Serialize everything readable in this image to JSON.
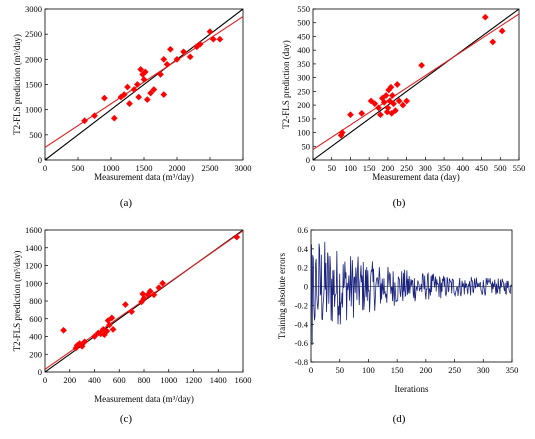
{
  "charts": [
    {
      "type": "scatter",
      "panel_label": "(a)",
      "xlabel": "Measurement data (m³/day)",
      "ylabel": "T2-FLS prediction (m³/day)",
      "xlim": [
        0,
        3000
      ],
      "ylim": [
        0,
        3000
      ],
      "xticks": [
        0,
        500,
        1000,
        1500,
        2000,
        2500,
        3000
      ],
      "yticks": [
        0,
        500,
        1000,
        1500,
        2000,
        2500,
        3000
      ],
      "points": [
        [
          600,
          780
        ],
        [
          750,
          880
        ],
        [
          900,
          1230
        ],
        [
          1050,
          830
        ],
        [
          1150,
          1250
        ],
        [
          1200,
          1300
        ],
        [
          1250,
          1450
        ],
        [
          1280,
          1120
        ],
        [
          1350,
          1400
        ],
        [
          1400,
          1500
        ],
        [
          1420,
          1250
        ],
        [
          1450,
          1800
        ],
        [
          1480,
          1700
        ],
        [
          1500,
          1600
        ],
        [
          1520,
          1750
        ],
        [
          1550,
          1200
        ],
        [
          1600,
          1330
        ],
        [
          1650,
          1400
        ],
        [
          1750,
          1700
        ],
        [
          1800,
          1300
        ],
        [
          1800,
          2000
        ],
        [
          1850,
          1900
        ],
        [
          1900,
          2200
        ],
        [
          2000,
          2000
        ],
        [
          2100,
          2150
        ],
        [
          2200,
          2050
        ],
        [
          2300,
          2250
        ],
        [
          2350,
          2300
        ],
        [
          2500,
          2550
        ],
        [
          2550,
          2400
        ],
        [
          2650,
          2400
        ]
      ],
      "lines": [
        {
          "color": "#000000",
          "x": [
            0,
            3000
          ],
          "y": [
            0,
            3000
          ]
        },
        {
          "color": "#e02020",
          "x": [
            0,
            3000
          ],
          "y": [
            250,
            2850
          ]
        }
      ]
    },
    {
      "type": "scatter",
      "panel_label": "(b)",
      "xlabel": "Measurement data (day)",
      "ylabel": "T2-FLS prediction (day)",
      "xlim": [
        0,
        550
      ],
      "ylim": [
        0,
        550
      ],
      "xticks": [
        0,
        50,
        100,
        150,
        200,
        250,
        300,
        350,
        400,
        450,
        500,
        550
      ],
      "yticks": [
        0,
        50,
        100,
        150,
        200,
        250,
        300,
        350,
        400,
        450,
        500,
        550
      ],
      "points": [
        [
          75,
          90
        ],
        [
          78,
          100
        ],
        [
          100,
          165
        ],
        [
          130,
          170
        ],
        [
          155,
          215
        ],
        [
          165,
          205
        ],
        [
          175,
          190
        ],
        [
          180,
          165
        ],
        [
          185,
          225
        ],
        [
          190,
          210
        ],
        [
          195,
          235
        ],
        [
          198,
          175
        ],
        [
          200,
          190
        ],
        [
          202,
          255
        ],
        [
          205,
          215
        ],
        [
          208,
          265
        ],
        [
          210,
          170
        ],
        [
          212,
          235
        ],
        [
          215,
          205
        ],
        [
          220,
          180
        ],
        [
          225,
          275
        ],
        [
          230,
          215
        ],
        [
          240,
          200
        ],
        [
          250,
          215
        ],
        [
          290,
          345
        ],
        [
          460,
          520
        ],
        [
          480,
          430
        ],
        [
          505,
          470
        ]
      ],
      "lines": [
        {
          "color": "#000000",
          "x": [
            0,
            550
          ],
          "y": [
            0,
            550
          ]
        },
        {
          "color": "#e02020",
          "x": [
            0,
            550
          ],
          "y": [
            38,
            532
          ]
        }
      ]
    },
    {
      "type": "scatter",
      "panel_label": "(c)",
      "xlabel": "Measurement data (m³/day)",
      "ylabel": "T2-FLS prediction (m³/day)",
      "xlim": [
        0,
        1600
      ],
      "ylim": [
        0,
        1600
      ],
      "xticks": [
        0,
        200,
        400,
        600,
        800,
        1000,
        1200,
        1400,
        1600
      ],
      "yticks": [
        0,
        200,
        400,
        600,
        800,
        1000,
        1200,
        1400,
        1600
      ],
      "points": [
        [
          150,
          470
        ],
        [
          250,
          270
        ],
        [
          260,
          300
        ],
        [
          280,
          320
        ],
        [
          300,
          290
        ],
        [
          320,
          340
        ],
        [
          400,
          400
        ],
        [
          430,
          440
        ],
        [
          450,
          430
        ],
        [
          470,
          480
        ],
        [
          480,
          420
        ],
        [
          500,
          460
        ],
        [
          510,
          580
        ],
        [
          520,
          530
        ],
        [
          540,
          610
        ],
        [
          550,
          480
        ],
        [
          650,
          760
        ],
        [
          700,
          680
        ],
        [
          780,
          790
        ],
        [
          790,
          880
        ],
        [
          800,
          830
        ],
        [
          830,
          870
        ],
        [
          850,
          910
        ],
        [
          880,
          870
        ],
        [
          920,
          950
        ],
        [
          950,
          1000
        ],
        [
          1550,
          1520
        ]
      ],
      "lines": [
        {
          "color": "#000000",
          "x": [
            0,
            1600
          ],
          "y": [
            0,
            1600
          ]
        },
        {
          "color": "#e02020",
          "x": [
            0,
            1600
          ],
          "y": [
            30,
            1590
          ]
        }
      ]
    },
    {
      "type": "line",
      "panel_label": "(d)",
      "xlabel": "Iterations",
      "ylabel": "Training absolute errors",
      "xlim": [
        0,
        350
      ],
      "ylim": [
        -0.8,
        0.6
      ],
      "xticks": [
        0,
        50,
        100,
        150,
        200,
        250,
        300,
        350
      ],
      "yticks": [
        0.6,
        0.4,
        0.2,
        0,
        -0.2,
        -0.4,
        -0.6,
        -0.8
      ],
      "color": "#1a237e",
      "amplitude_envelope": {
        "start": 0.55,
        "end": 0.06,
        "iterations": 350
      }
    }
  ]
}
